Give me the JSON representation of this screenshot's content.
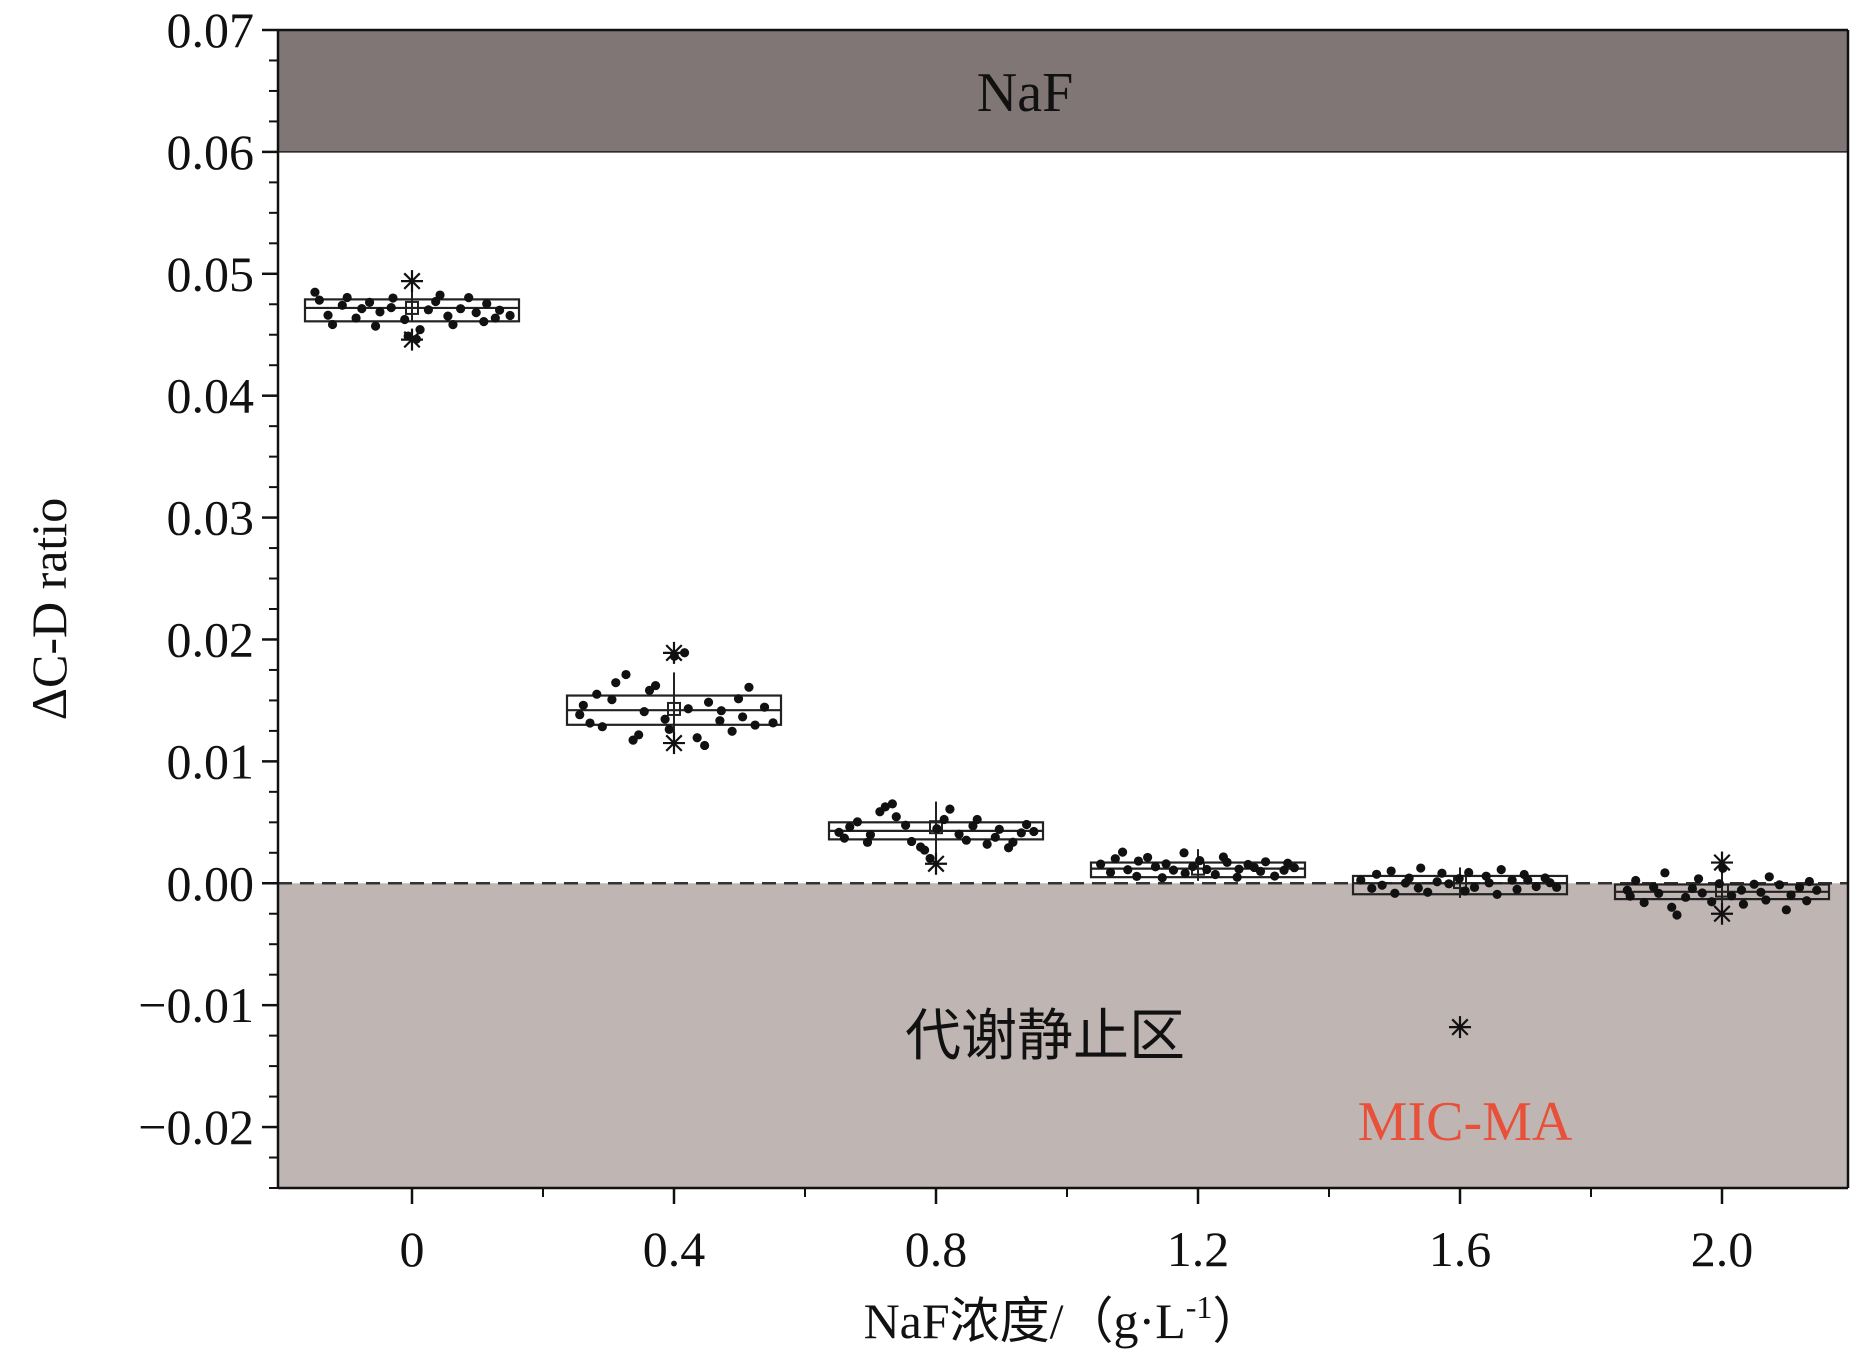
{
  "chart_data": {
    "type": "box",
    "title": "",
    "xlabel_main": "NaF浓度/（g·L",
    "xlabel_sup": "-1",
    "xlabel_close": "）",
    "ylabel": "ΔC-D ratio",
    "ylim": [
      -0.025,
      0.07
    ],
    "grid": false,
    "categories": [
      "0",
      "0.4",
      "0.8",
      "1.2",
      "1.6",
      "2.0"
    ],
    "y_ticks": [
      "0.07",
      "0.06",
      "0.05",
      "0.04",
      "0.03",
      "0.02",
      "0.01",
      "0.00",
      "−0.01",
      "−0.02"
    ],
    "y_tick_values": [
      0.07,
      0.06,
      0.05,
      0.04,
      0.03,
      0.02,
      0.01,
      0.0,
      -0.01,
      -0.02
    ],
    "reference_line": 0.0,
    "regions": {
      "top": {
        "label": "NaF",
        "from": 0.06,
        "to": 0.07,
        "color": "#817676"
      },
      "bottom": {
        "label": "代谢静止区",
        "from": -0.025,
        "to": 0.0,
        "color": "#bfb6b4"
      }
    },
    "annotation": {
      "label": "MIC-MA",
      "color": "#e8503a"
    },
    "boxes": [
      {
        "category": "0",
        "q1": 0.0461,
        "median": 0.0472,
        "q3": 0.0479,
        "mean": 0.0472,
        "whisker_low": 0.0461,
        "whisker_high": 0.0489,
        "outliers": [
          0.0494,
          0.0446
        ],
        "points": [
          0.0485,
          0.0478,
          0.0466,
          0.0459,
          0.0474,
          0.0481,
          0.0463,
          0.0471,
          0.0476,
          0.0457,
          0.0468,
          0.0473,
          0.048,
          0.0462,
          0.0449,
          0.0446,
          0.0455,
          0.047,
          0.0477,
          0.0483,
          0.0465,
          0.0459,
          0.0472,
          0.048,
          0.0468,
          0.0461,
          0.0475,
          0.0463,
          0.047,
          0.0466
        ]
      },
      {
        "category": "0.4",
        "q1": 0.013,
        "median": 0.0142,
        "q3": 0.0154,
        "mean": 0.0143,
        "whisker_low": 0.0113,
        "whisker_high": 0.0173,
        "outliers": [
          0.0189,
          0.0115
        ],
        "points": [
          0.0138,
          0.0146,
          0.0132,
          0.0155,
          0.0128,
          0.015,
          0.0165,
          0.0172,
          0.0118,
          0.0122,
          0.014,
          0.0158,
          0.0162,
          0.0135,
          0.0127,
          0.0186,
          0.0189,
          0.0144,
          0.012,
          0.0113,
          0.0149,
          0.0133,
          0.0141,
          0.0125,
          0.0152,
          0.0137,
          0.016,
          0.0129,
          0.0145,
          0.0131
        ]
      },
      {
        "category": "0.8",
        "q1": 0.0036,
        "median": 0.0043,
        "q3": 0.005,
        "mean": 0.0046,
        "whisker_low": 0.0022,
        "whisker_high": 0.0067,
        "outliers": [
          0.0016
        ],
        "points": [
          0.0041,
          0.0037,
          0.0046,
          0.005,
          0.0033,
          0.0039,
          0.0058,
          0.0062,
          0.0065,
          0.0055,
          0.0048,
          0.0035,
          0.003,
          0.0027,
          0.0021,
          0.0044,
          0.0052,
          0.0061,
          0.004,
          0.0036,
          0.0047,
          0.0053,
          0.0032,
          0.0038,
          0.0045,
          0.0029,
          0.0034,
          0.0042,
          0.0049,
          0.0043
        ]
      },
      {
        "category": "1.2",
        "q1": 0.0005,
        "median": 0.0012,
        "q3": 0.0017,
        "mean": 0.0012,
        "whisker_low": 0.0002,
        "whisker_high": 0.0028,
        "outliers": [],
        "points": [
          0.0015,
          0.0009,
          0.002,
          0.0026,
          0.0011,
          0.0006,
          0.0018,
          0.0022,
          0.0013,
          0.0004,
          0.0016,
          0.001,
          0.0025,
          0.0008,
          0.0014,
          0.0019,
          0.0012,
          0.0007,
          0.0021,
          0.0017,
          0.0005,
          0.0011,
          0.0015,
          0.0013,
          0.0009,
          0.0018,
          0.0006,
          0.001,
          0.0016,
          0.0012
        ]
      },
      {
        "category": "1.6",
        "q1": -0.0009,
        "median": 0.0,
        "q3": 0.0006,
        "mean": 0.0001,
        "whisker_low": -0.0012,
        "whisker_high": 0.0013,
        "outliers": [
          -0.0118
        ],
        "points": [
          0.0003,
          -0.0005,
          0.0007,
          -0.0002,
          0.001,
          -0.0008,
          0.0001,
          0.0005,
          -0.0004,
          0.0012,
          -0.0007,
          0.0002,
          0.0008,
          -0.0001,
          0.0004,
          -0.0006,
          0.0009,
          -0.0003,
          0.0006,
          0.0,
          -0.0009,
          0.0011,
          0.0003,
          -0.0005,
          0.0007,
          0.0002,
          -0.0002,
          0.0005,
          0.0001,
          -0.0004
        ]
      },
      {
        "category": "2.0",
        "q1": -0.0013,
        "median": -0.0007,
        "q3": -0.0001,
        "mean": -0.0006,
        "whisker_low": -0.0028,
        "whisker_high": 0.0015,
        "outliers": [
          0.0017,
          -0.0025
        ],
        "points": [
          -0.0006,
          -0.0011,
          0.0002,
          -0.0015,
          -0.0003,
          -0.0009,
          0.0008,
          -0.002,
          -0.0026,
          -0.0012,
          -0.0004,
          0.0003,
          -0.0008,
          -0.0016,
          -0.0001,
          0.0012,
          -0.001,
          -0.0005,
          -0.0018,
          0.0,
          -0.0007,
          -0.0013,
          0.0005,
          -0.0002,
          -0.0022,
          -0.0009,
          -0.0004,
          -0.0014,
          0.0001,
          -0.0006
        ]
      }
    ]
  }
}
